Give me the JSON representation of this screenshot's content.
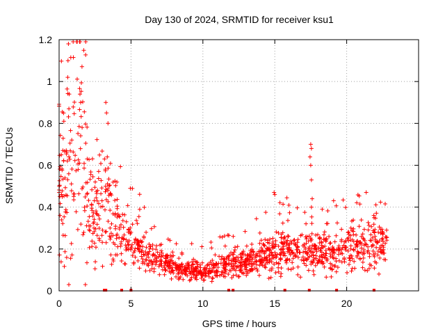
{
  "chart_data": {
    "type": "scatter",
    "title": "Day 130 of 2024, SRMTID for receiver ksu1",
    "xlabel": "GPS time / hours",
    "ylabel": "SRMTID / TECUs",
    "xlim": [
      0,
      25
    ],
    "ylim": [
      0,
      1.2
    ],
    "x_ticks": [
      0,
      5,
      10,
      15,
      20
    ],
    "x_tick_labels": [
      "0",
      "5",
      "10",
      "15",
      "20"
    ],
    "y_ticks": [
      0,
      0.2,
      0.4,
      0.6,
      0.8,
      1,
      1.2
    ],
    "y_tick_labels": [
      "0",
      "0.2",
      "0.4",
      "0.6",
      "0.8",
      "1",
      "1.2"
    ],
    "grid": true,
    "marker": "plus",
    "series": [
      {
        "name": "SRMTID",
        "color": "#ff0000",
        "envelope": [
          [
            0.0,
            0.5
          ],
          [
            0.25,
            0.45
          ],
          [
            0.5,
            0.5
          ],
          [
            0.75,
            0.55
          ],
          [
            1.0,
            0.6
          ],
          [
            1.25,
            0.65
          ],
          [
            1.5,
            0.7
          ],
          [
            1.75,
            0.6
          ],
          [
            2.0,
            0.5
          ],
          [
            2.25,
            0.42
          ],
          [
            2.5,
            0.4
          ],
          [
            2.75,
            0.38
          ],
          [
            3.0,
            0.4
          ],
          [
            3.25,
            0.42
          ],
          [
            3.5,
            0.38
          ],
          [
            3.75,
            0.32
          ],
          [
            4.0,
            0.28
          ],
          [
            4.5,
            0.26
          ],
          [
            5.0,
            0.24
          ],
          [
            5.5,
            0.2
          ],
          [
            6.0,
            0.17
          ],
          [
            6.5,
            0.15
          ],
          [
            7.0,
            0.15
          ],
          [
            7.5,
            0.13
          ],
          [
            8.0,
            0.11
          ],
          [
            8.5,
            0.1
          ],
          [
            9.0,
            0.1
          ],
          [
            9.5,
            0.1
          ],
          [
            10.0,
            0.09
          ],
          [
            10.5,
            0.1
          ],
          [
            11.0,
            0.11
          ],
          [
            11.5,
            0.12
          ],
          [
            12.0,
            0.13
          ],
          [
            12.5,
            0.13
          ],
          [
            13.0,
            0.14
          ],
          [
            13.5,
            0.15
          ],
          [
            14.0,
            0.16
          ],
          [
            14.5,
            0.17
          ],
          [
            15.0,
            0.18
          ],
          [
            15.5,
            0.19
          ],
          [
            16.0,
            0.2
          ],
          [
            16.5,
            0.19
          ],
          [
            17.0,
            0.18
          ],
          [
            17.5,
            0.2
          ],
          [
            18.0,
            0.2
          ],
          [
            18.5,
            0.19
          ],
          [
            19.0,
            0.18
          ],
          [
            19.5,
            0.18
          ],
          [
            20.0,
            0.19
          ],
          [
            20.5,
            0.2
          ],
          [
            21.0,
            0.21
          ],
          [
            21.5,
            0.22
          ],
          [
            22.0,
            0.23
          ],
          [
            22.5,
            0.22
          ],
          [
            22.8,
            0.22
          ]
        ],
        "spikes": [
          [
            0.15,
            0.65
          ],
          [
            0.65,
            1.18
          ],
          [
            0.62,
            1.1
          ],
          [
            0.6,
            1.02
          ],
          [
            0.7,
            0.94
          ],
          [
            0.68,
            0.87
          ],
          [
            1.45,
            0.94
          ],
          [
            1.5,
            0.9
          ],
          [
            1.6,
            0.78
          ],
          [
            3.25,
            0.9
          ],
          [
            3.3,
            0.85
          ],
          [
            3.4,
            0.8
          ],
          [
            3.35,
            0.64
          ],
          [
            4.95,
            0.49
          ],
          [
            14.95,
            0.47
          ],
          [
            15.0,
            0.46
          ],
          [
            17.5,
            0.7
          ],
          [
            17.55,
            0.68
          ],
          [
            17.45,
            0.64
          ],
          [
            17.5,
            0.6
          ],
          [
            17.55,
            0.53
          ],
          [
            17.6,
            0.44
          ],
          [
            17.55,
            0.4
          ],
          [
            18.3,
            0.39
          ]
        ],
        "zero_markers_x": [
          3.15,
          3.25,
          4.35,
          5.0,
          11.8,
          12.1,
          15.7,
          17.4,
          19.3,
          21.9
        ]
      }
    ]
  }
}
